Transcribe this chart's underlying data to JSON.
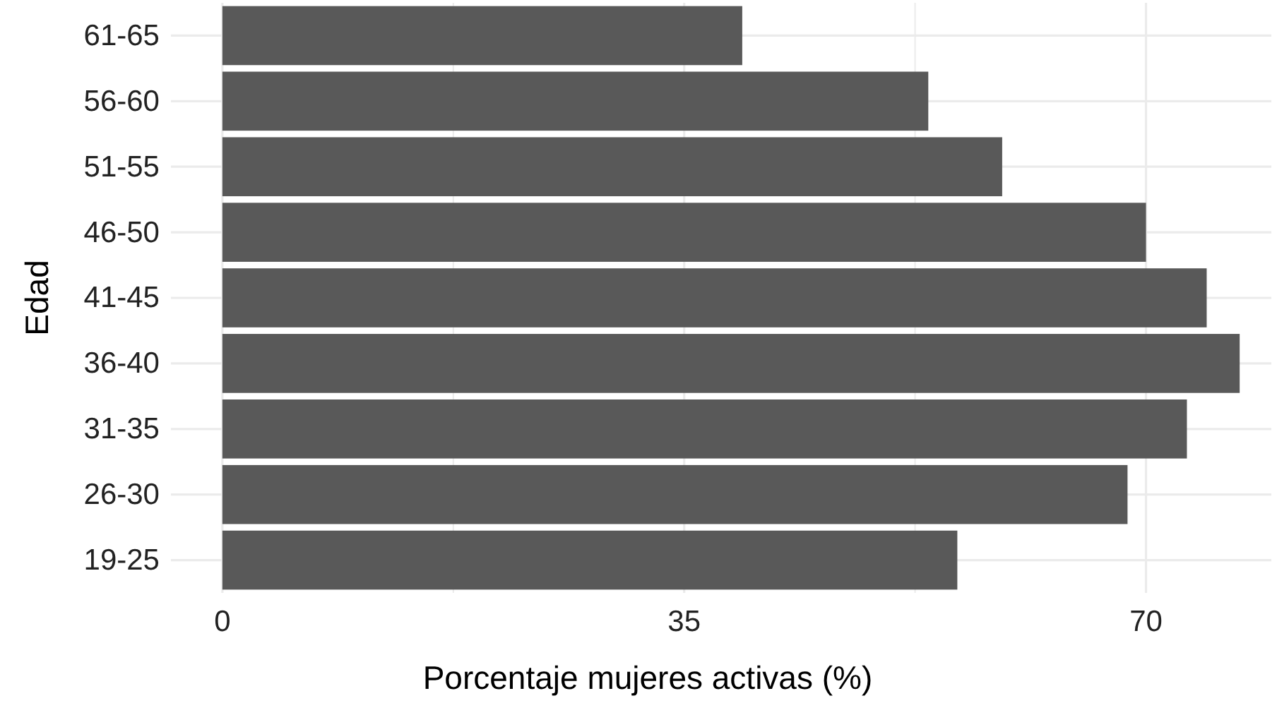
{
  "chart_data": {
    "type": "bar",
    "orientation": "horizontal",
    "xlabel": "Porcentaje mujeres activas (%)",
    "ylabel": "Edad",
    "categories": [
      "61-65",
      "56-60",
      "51-55",
      "46-50",
      "41-45",
      "36-40",
      "31-35",
      "26-30",
      "19-25"
    ],
    "values": [
      39.4,
      53.5,
      59.1,
      70.0,
      74.6,
      77.1,
      73.1,
      68.6,
      55.7
    ],
    "color": "#595959",
    "xlim": [
      -3.9,
      79.5
    ],
    "xticks": [
      0,
      {
        "value": 17.5,
        "label": null
      },
      35,
      {
        "value": 52.5,
        "label": null
      },
      70
    ],
    "grid": true
  }
}
